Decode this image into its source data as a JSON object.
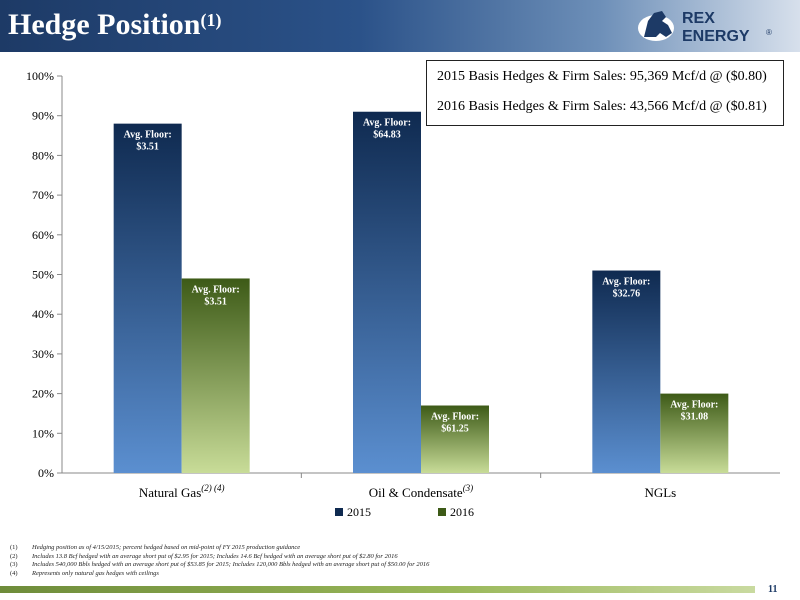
{
  "header": {
    "title": "Hedge Position",
    "title_sup": "(1)"
  },
  "logo": {
    "icon": "rearing-horse-logo-icon",
    "line1": "REX",
    "line2": "ENERGY",
    "mark": "®"
  },
  "basis_box": {
    "line1": "2015 Basis Hedges & Firm Sales: 95,369 Mcf/d @ ($0.80)",
    "line2": "2016 Basis Hedges & Firm Sales: 43,566 Mcf/d @ ($0.81)"
  },
  "chart_data": {
    "type": "bar",
    "categories": [
      "Natural Gas",
      "Oil & Condensate",
      "NGLs"
    ],
    "category_superscripts": [
      "(2) (4)",
      "(3)",
      ""
    ],
    "series": [
      {
        "name": "2015",
        "values": [
          88,
          91,
          51
        ],
        "labels": [
          [
            "Avg. Floor:",
            "$3.51"
          ],
          [
            "Avg. Floor:",
            "$64.83"
          ],
          [
            "Avg. Floor:",
            "$32.76"
          ]
        ],
        "color_top": "#0f2a50",
        "color_bottom": "#5b8fd0"
      },
      {
        "name": "2016",
        "values": [
          49,
          17,
          20
        ],
        "labels": [
          [
            "Avg. Floor:",
            "$3.51"
          ],
          [
            "Avg. Floor:",
            "$61.25"
          ],
          [
            "Avg. Floor:",
            "$31.08"
          ]
        ],
        "color_top": "#3d5a17",
        "color_bottom": "#c8dc98"
      }
    ],
    "yticks": [
      "0%",
      "10%",
      "20%",
      "30%",
      "40%",
      "50%",
      "60%",
      "70%",
      "80%",
      "90%",
      "100%"
    ],
    "ylim": [
      0,
      100
    ],
    "legend": "bottom",
    "grid": false
  },
  "footnotes": [
    {
      "num": "(1)",
      "text": "Hedging position as of 4/15/2015; percent hedged based on mid-point of FY 2015 production guidance"
    },
    {
      "num": "(2)",
      "text": "Includes 13.8 Bcf hedged with an average short put of $2.95 for 2015; Includes 14.6 Bcf hedged with an average short put of $2.80 for 2016"
    },
    {
      "num": "(3)",
      "text": "Includes 540,000 Bbls hedged with an average short put of $53.85 for 2015; Includes 120,000 Bbls hedged with an average short put of $50.00 for 2016"
    },
    {
      "num": "(4)",
      "text": "Represents only natural gas hedges with ceilings"
    }
  ],
  "page_number": "11"
}
